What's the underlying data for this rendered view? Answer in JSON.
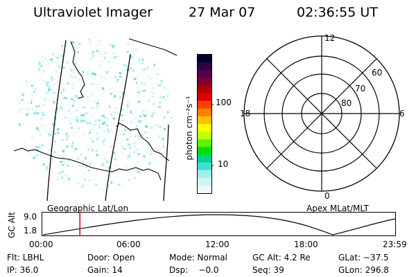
{
  "header": {
    "title": "Ultraviolet Imager",
    "date": "27 Mar 07",
    "time": "02:36:55 UT"
  },
  "colorbar": {
    "label": "photon cm⁻²s⁻¹",
    "ticks": [
      "100",
      "10"
    ],
    "colors": [
      "#000030",
      "#300040",
      "#500050",
      "#800030",
      "#b00000",
      "#e00000",
      "#ff4000",
      "#ff8000",
      "#ffc000",
      "#ffff00",
      "#c0ff00",
      "#60f000",
      "#00e000",
      "#00d090",
      "#40e0d0",
      "#a0f0f0",
      "#d0f4f4",
      "#eef8f8"
    ]
  },
  "polar_plot": {
    "labels": {
      "top": "12",
      "bottom": "0",
      "left": "18",
      "right": "6"
    },
    "latitude_labels": [
      "60",
      "70",
      "80"
    ]
  },
  "altitude_panel": {
    "ylabel": "GC Alt",
    "yticks": [
      "9.0",
      "1.8"
    ],
    "left_caption": "Geographic Lat/Lon",
    "right_caption": "Apex MLat/MLT",
    "xticks": [
      "00:00",
      "06:00",
      "12:00",
      "18:00",
      "23:59"
    ],
    "marker_time_hours": 2.6,
    "marker_color": "#d00000"
  },
  "info": {
    "row1": [
      "Flt: LBHL",
      "Door: Open",
      "Mode: Normal",
      "GC Alt: 4.2 Re",
      "GLat: −37.5"
    ],
    "row2": [
      "IP: 36.0",
      "Gain: 14",
      "Dsp:    −0.0",
      "Seq: 39",
      "GLon: 296.8"
    ]
  }
}
